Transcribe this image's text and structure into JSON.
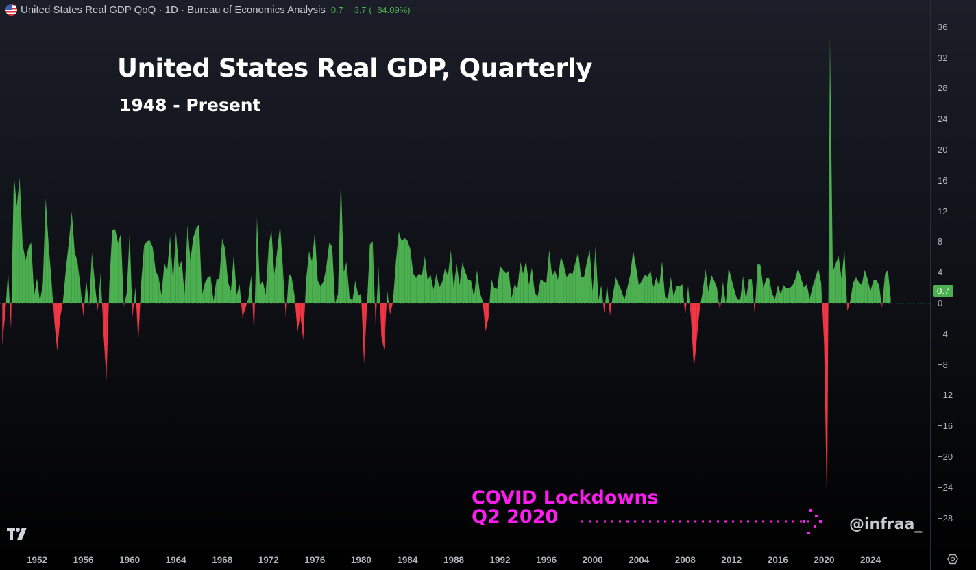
{
  "header": {
    "title": "United States Real GDP QoQ · 1D · Bureau of Economics Analysis",
    "last_value": "0.7",
    "change": "−3.7 (−84.09%)",
    "flag_icon": "us-flag-icon"
  },
  "overlay": {
    "title": "United States Real GDP, Quarterly",
    "subtitle": "1948 - Present",
    "annotation_line1": "COVID Lockdowns",
    "annotation_line2": "Q2 2020",
    "watermark": "@infraa_"
  },
  "price_badge": "0.7",
  "colors": {
    "positive": "#4caf50",
    "negative": "#f23645",
    "annotation": "#ff1cf0"
  },
  "chart_data": {
    "type": "area",
    "title": "United States Real GDP, Quarterly",
    "subtitle": "1948 - Present",
    "xlabel": "",
    "ylabel": "",
    "ylim": [
      -30,
      38
    ],
    "xlim": [
      1949,
      2026
    ],
    "grid": false,
    "y_ticks": [
      "36",
      "32",
      "28",
      "24",
      "20",
      "16",
      "12",
      "8",
      "4",
      "0",
      "−4",
      "−8",
      "−12",
      "−16",
      "−20",
      "−24",
      "−28"
    ],
    "x_ticks": [
      "1952",
      "1956",
      "1960",
      "1964",
      "1968",
      "1972",
      "1976",
      "1980",
      "1984",
      "1988",
      "1992",
      "1996",
      "2000",
      "2004",
      "2008",
      "2012",
      "2016",
      "2020",
      "2024"
    ],
    "start": "1949 Q1",
    "frequency": "quarterly",
    "values_by_year": {
      "1949": [
        -5.4,
        -1.4,
        4.2,
        -3.4
      ],
      "1950": [
        16.9,
        12.7,
        16.4,
        7.9
      ],
      "1951": [
        5.6,
        7.2,
        8.0,
        1.0
      ],
      "1952": [
        3.3,
        0.3,
        2.5,
        13.8
      ],
      "1953": [
        7.7,
        3.1,
        -2.4,
        -6.2
      ],
      "1954": [
        -1.9,
        0.4,
        4.6,
        8.0
      ],
      "1955": [
        12.0,
        6.8,
        5.4,
        2.3
      ],
      "1956": [
        -1.7,
        3.1,
        -0.3,
        6.7
      ],
      "1957": [
        2.6,
        -1.0,
        4.0,
        -4.1
      ],
      "1958": [
        -10.0,
        2.6,
        9.6,
        9.7
      ],
      "1959": [
        7.9,
        9.1,
        -0.4,
        1.4
      ],
      "1960": [
        9.2,
        -1.8,
        2.1,
        -5.0
      ],
      "1961": [
        2.7,
        7.6,
        8.1,
        8.2
      ],
      "1962": [
        7.3,
        4.2,
        3.5,
        1.1
      ],
      "1963": [
        5.2,
        4.3,
        8.9,
        2.9
      ],
      "1964": [
        9.4,
        4.7,
        5.6,
        1.1
      ],
      "1965": [
        10.2,
        5.6,
        8.6,
        9.8
      ],
      "1966": [
        10.3,
        1.1,
        2.7,
        3.4
      ],
      "1967": [
        3.6,
        0.3,
        3.2,
        3.2
      ],
      "1968": [
        8.5,
        7.1,
        2.8,
        1.6
      ],
      "1969": [
        6.4,
        1.1,
        2.5,
        -1.9
      ],
      "1970": [
        -0.6,
        0.6,
        3.7,
        -4.2
      ],
      "1971": [
        11.3,
        2.3,
        3.0,
        1.1
      ],
      "1972": [
        7.3,
        9.6,
        3.8,
        6.9
      ],
      "1973": [
        10.3,
        4.4,
        -2.1,
        3.9
      ],
      "1974": [
        3.4,
        1.0,
        -3.7,
        -1.5
      ],
      "1975": [
        -4.8,
        3.1,
        6.8,
        5.5
      ],
      "1976": [
        9.3,
        3.0,
        2.2,
        2.9
      ],
      "1977": [
        4.8,
        8.0,
        7.4,
        0.0
      ],
      "1978": [
        1.3,
        16.4,
        4.1,
        5.4
      ],
      "1979": [
        0.7,
        0.4,
        3.0,
        1.0
      ],
      "1980": [
        1.3,
        -8.0,
        -0.5,
        7.7
      ],
      "1981": [
        8.1,
        -2.9,
        4.9,
        -4.3
      ],
      "1982": [
        -6.1,
        1.8,
        -1.5,
        0.2
      ],
      "1983": [
        5.4,
        9.4,
        8.1,
        8.5
      ],
      "1984": [
        8.2,
        7.1,
        3.9,
        3.3
      ],
      "1985": [
        3.9,
        3.6,
        6.2,
        3.0
      ],
      "1986": [
        3.8,
        1.8,
        3.9,
        2.1
      ],
      "1987": [
        2.8,
        4.6,
        3.6,
        7.0
      ],
      "1988": [
        2.0,
        5.2,
        2.4,
        5.4
      ],
      "1989": [
        4.1,
        3.1,
        3.0,
        0.8
      ],
      "1990": [
        4.4,
        1.5,
        0.3,
        -3.6
      ],
      "1991": [
        -1.9,
        3.2,
        2.0,
        1.9
      ],
      "1992": [
        4.9,
        4.4,
        4.0,
        4.2
      ],
      "1993": [
        0.7,
        2.5,
        1.9,
        5.4
      ],
      "1994": [
        3.9,
        5.6,
        2.4,
        4.7
      ],
      "1995": [
        1.4,
        0.9,
        3.2,
        2.9
      ],
      "1996": [
        2.6,
        7.0,
        3.6,
        4.3
      ],
      "1997": [
        3.1,
        6.1,
        5.1,
        3.4
      ],
      "1998": [
        4.0,
        3.8,
        5.3,
        6.7
      ],
      "1999": [
        3.4,
        3.4,
        5.4,
        7.0
      ],
      "2000": [
        1.5,
        7.5,
        0.4,
        2.4
      ],
      "2001": [
        -1.3,
        2.5,
        -1.6,
        1.1
      ],
      "2002": [
        3.4,
        2.5,
        1.6,
        0.5
      ],
      "2003": [
        2.1,
        3.8,
        6.9,
        4.8
      ],
      "2004": [
        2.3,
        3.0,
        3.7,
        3.5
      ],
      "2005": [
        4.3,
        2.1,
        3.4,
        2.3
      ],
      "2006": [
        5.5,
        0.9,
        0.6,
        3.5
      ],
      "2007": [
        0.9,
        2.3,
        2.2,
        2.5
      ],
      "2008": [
        -1.6,
        2.3,
        -2.1,
        -8.5
      ],
      "2009": [
        -4.6,
        -0.7,
        1.5,
        4.5
      ],
      "2010": [
        1.5,
        3.7,
        3.0,
        2.0
      ],
      "2011": [
        -1.0,
        2.9,
        -0.1,
        4.7
      ],
      "2012": [
        3.2,
        1.7,
        0.5,
        0.5
      ],
      "2013": [
        3.6,
        0.5,
        3.2,
        3.2
      ],
      "2014": [
        -1.4,
        5.2,
        5.0,
        2.0
      ],
      "2015": [
        3.3,
        3.3,
        1.3,
        0.6
      ],
      "2016": [
        2.4,
        1.2,
        2.4,
        2.0
      ],
      "2017": [
        2.0,
        2.3,
        3.2,
        4.6
      ],
      "2018": [
        3.3,
        2.1,
        2.5,
        0.6
      ],
      "2019": [
        2.2,
        3.4,
        4.6,
        2.6
      ],
      "2020": [
        -5.5,
        -28.0,
        34.8,
        4.2
      ],
      "2021": [
        5.2,
        6.2,
        3.3,
        7.0
      ],
      "2022": [
        -1.0,
        0.3,
        2.7,
        3.4
      ],
      "2023": [
        2.8,
        2.4,
        4.4,
        3.2
      ],
      "2024": [
        1.6,
        3.0,
        3.1,
        2.4
      ],
      "2025": [
        -0.6,
        3.8,
        4.4,
        0.7
      ]
    }
  }
}
